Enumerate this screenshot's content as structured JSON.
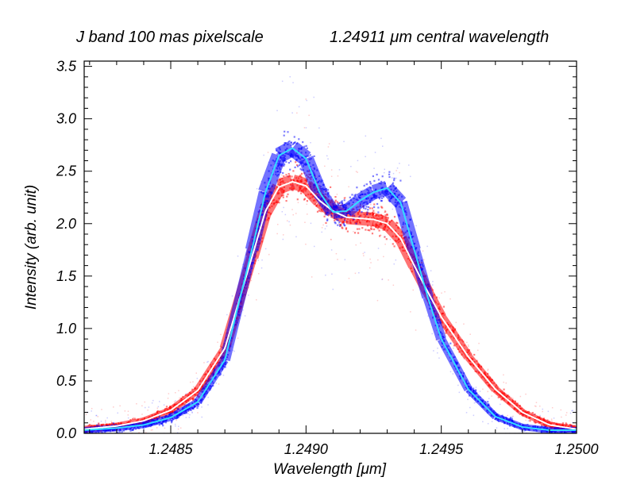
{
  "chart_data": {
    "type": "scatter",
    "title_left": "J band 100 mas pixelscale",
    "title_right": "1.24911 μm central wavelength",
    "xlabel": "Wavelength [μm]",
    "ylabel": "Intensity (arb. unit)",
    "xlim": [
      1.24818,
      1.25
    ],
    "ylim": [
      0,
      3.55
    ],
    "x_ticks": [
      1.2485,
      1.249,
      1.2495,
      1.25
    ],
    "x_tick_labels": [
      "1.2485",
      "1.2490",
      "1.2495",
      "1.2500"
    ],
    "y_ticks": [
      0.0,
      0.5,
      1.0,
      1.5,
      2.0,
      2.5,
      3.0,
      3.5
    ],
    "y_tick_labels": [
      "0.0",
      "0.5",
      "1.0",
      "1.5",
      "2.0",
      "2.5",
      "3.0",
      "3.5"
    ],
    "series": [
      {
        "name": "red pixel spectra",
        "color": "#ff0000",
        "style": "scatter",
        "x": [
          1.24818,
          1.2483,
          1.2484,
          1.2485,
          1.2486,
          1.2487,
          1.2488,
          1.24885,
          1.2489,
          1.24895,
          1.249,
          1.24905,
          1.2491,
          1.24915,
          1.2492,
          1.24925,
          1.2493,
          1.24935,
          1.2494,
          1.24945,
          1.2495,
          1.2496,
          1.2497,
          1.2498,
          1.2499,
          1.25
        ],
        "values": [
          0.04,
          0.07,
          0.12,
          0.22,
          0.41,
          0.81,
          1.68,
          2.12,
          2.35,
          2.4,
          2.36,
          2.22,
          2.12,
          2.06,
          2.05,
          2.04,
          2.0,
          1.86,
          1.6,
          1.35,
          1.11,
          0.73,
          0.42,
          0.2,
          0.08,
          0.04
        ]
      },
      {
        "name": "blue pixel spectra",
        "color": "#0000ff",
        "style": "scatter",
        "x": [
          1.24818,
          1.2483,
          1.2484,
          1.2485,
          1.2486,
          1.2487,
          1.2488,
          1.24885,
          1.2489,
          1.24895,
          1.249,
          1.24905,
          1.2491,
          1.24915,
          1.2492,
          1.24925,
          1.2493,
          1.24935,
          1.2494,
          1.24945,
          1.2495,
          1.2496,
          1.2497,
          1.2498,
          1.2499,
          1.25
        ],
        "values": [
          0.03,
          0.05,
          0.08,
          0.15,
          0.3,
          0.7,
          1.75,
          2.3,
          2.65,
          2.72,
          2.62,
          2.3,
          2.11,
          2.12,
          2.22,
          2.3,
          2.34,
          2.2,
          1.75,
          1.3,
          0.9,
          0.42,
          0.16,
          0.06,
          0.03,
          0.03
        ]
      },
      {
        "name": "red mean",
        "color": "#ffffff",
        "style": "line",
        "x": [
          1.24818,
          1.2483,
          1.2484,
          1.2485,
          1.2486,
          1.2487,
          1.2488,
          1.24885,
          1.2489,
          1.24895,
          1.249,
          1.24905,
          1.2491,
          1.24915,
          1.2492,
          1.24925,
          1.2493,
          1.24935,
          1.2494,
          1.24945,
          1.2495,
          1.2496,
          1.2497,
          1.2498,
          1.2499,
          1.25
        ],
        "values": [
          0.04,
          0.07,
          0.12,
          0.22,
          0.41,
          0.81,
          1.68,
          2.12,
          2.35,
          2.4,
          2.36,
          2.22,
          2.12,
          2.06,
          2.05,
          2.04,
          2.0,
          1.86,
          1.6,
          1.35,
          1.11,
          0.73,
          0.42,
          0.2,
          0.08,
          0.04
        ]
      },
      {
        "name": "blue mean",
        "color": "#33ddff",
        "style": "line",
        "x": [
          1.24818,
          1.2483,
          1.2484,
          1.2485,
          1.2486,
          1.2487,
          1.2488,
          1.24885,
          1.2489,
          1.24895,
          1.249,
          1.24905,
          1.2491,
          1.24915,
          1.2492,
          1.24925,
          1.2493,
          1.24935,
          1.2494,
          1.24945,
          1.2495,
          1.2496,
          1.2497,
          1.2498,
          1.2499,
          1.25
        ],
        "values": [
          0.03,
          0.05,
          0.08,
          0.15,
          0.3,
          0.7,
          1.75,
          2.3,
          2.65,
          2.72,
          2.62,
          2.3,
          2.11,
          2.12,
          2.22,
          2.3,
          2.34,
          2.2,
          1.75,
          1.3,
          0.9,
          0.42,
          0.16,
          0.06,
          0.03,
          0.03
        ]
      }
    ]
  }
}
